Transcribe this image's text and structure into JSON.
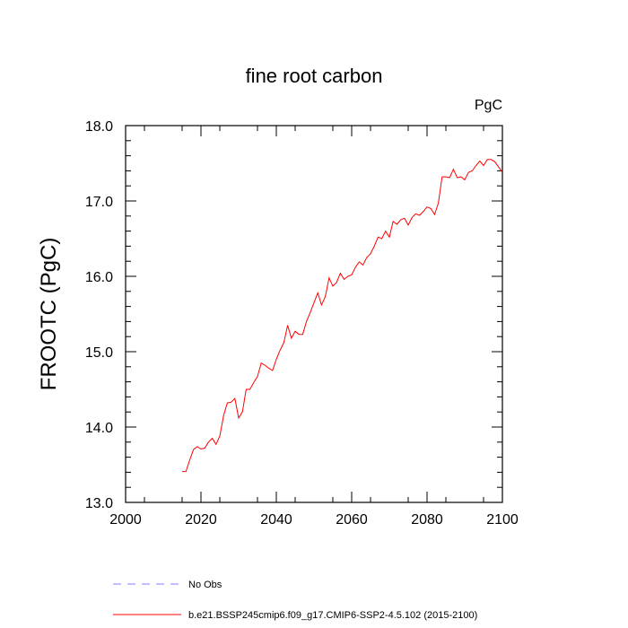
{
  "chart_data": {
    "type": "line",
    "title": "fine root carbon",
    "units": "PgC",
    "xlabel": "",
    "ylabel": "FROOTC  (PgC)",
    "xlim": [
      2000,
      2100
    ],
    "ylim": [
      13.0,
      18.0
    ],
    "x_ticks": [
      2000,
      2020,
      2040,
      2060,
      2080,
      2100
    ],
    "y_ticks": [
      13.0,
      14.0,
      15.0,
      16.0,
      17.0,
      18.0
    ],
    "x_tick_labels": [
      "2000",
      "2020",
      "2040",
      "2060",
      "2080",
      "2100"
    ],
    "y_tick_labels": [
      "13.0",
      "14.0",
      "15.0",
      "16.0",
      "17.0",
      "18.0"
    ],
    "legend": [
      {
        "name": "No Obs",
        "color": "#7f7fff",
        "style": "dashed"
      },
      {
        "name": "b.e21.BSSP245cmip6.f09_g17.CMIP6-SSP2-4.5.102 (2015-2100)",
        "color": "#ff0000",
        "style": "solid"
      }
    ],
    "series": [
      {
        "name": "b.e21.BSSP245cmip6.f09_g17.CMIP6-SSP2-4.5.102 (2015-2100)",
        "color": "#ff0000",
        "x": [
          2015,
          2016,
          2017,
          2018,
          2019,
          2020,
          2021,
          2022,
          2023,
          2024,
          2025,
          2026,
          2027,
          2028,
          2029,
          2030,
          2031,
          2032,
          2033,
          2034,
          2035,
          2036,
          2037,
          2038,
          2039,
          2040,
          2041,
          2042,
          2043,
          2044,
          2045,
          2046,
          2047,
          2048,
          2049,
          2050,
          2051,
          2052,
          2053,
          2054,
          2055,
          2056,
          2057,
          2058,
          2059,
          2060,
          2061,
          2062,
          2063,
          2064,
          2065,
          2066,
          2067,
          2068,
          2069,
          2070,
          2071,
          2072,
          2073,
          2074,
          2075,
          2076,
          2077,
          2078,
          2079,
          2080,
          2081,
          2082,
          2083,
          2084,
          2085,
          2086,
          2087,
          2088,
          2089,
          2090,
          2091,
          2092,
          2093,
          2094,
          2095,
          2096,
          2097,
          2098,
          2099,
          2100
        ],
        "values": [
          13.41,
          13.41,
          13.56,
          13.7,
          13.74,
          13.71,
          13.72,
          13.8,
          13.85,
          13.77,
          13.88,
          14.15,
          14.32,
          14.33,
          14.38,
          14.12,
          14.2,
          14.5,
          14.5,
          14.59,
          14.67,
          14.85,
          14.82,
          14.78,
          14.75,
          14.9,
          15.02,
          15.12,
          15.35,
          15.18,
          15.27,
          15.23,
          15.23,
          15.4,
          15.52,
          15.65,
          15.78,
          15.62,
          15.73,
          15.98,
          15.87,
          15.92,
          16.04,
          15.96,
          16.0,
          16.02,
          16.12,
          16.19,
          16.15,
          16.25,
          16.3,
          16.4,
          16.52,
          16.5,
          16.6,
          16.52,
          16.73,
          16.69,
          16.75,
          16.77,
          16.68,
          16.78,
          16.83,
          16.81,
          16.86,
          16.92,
          16.9,
          16.82,
          16.97,
          17.32,
          17.32,
          17.31,
          17.42,
          17.31,
          17.32,
          17.28,
          17.38,
          17.4,
          17.47,
          17.53,
          17.47,
          17.55,
          17.55,
          17.52,
          17.45,
          17.38
        ]
      }
    ]
  }
}
